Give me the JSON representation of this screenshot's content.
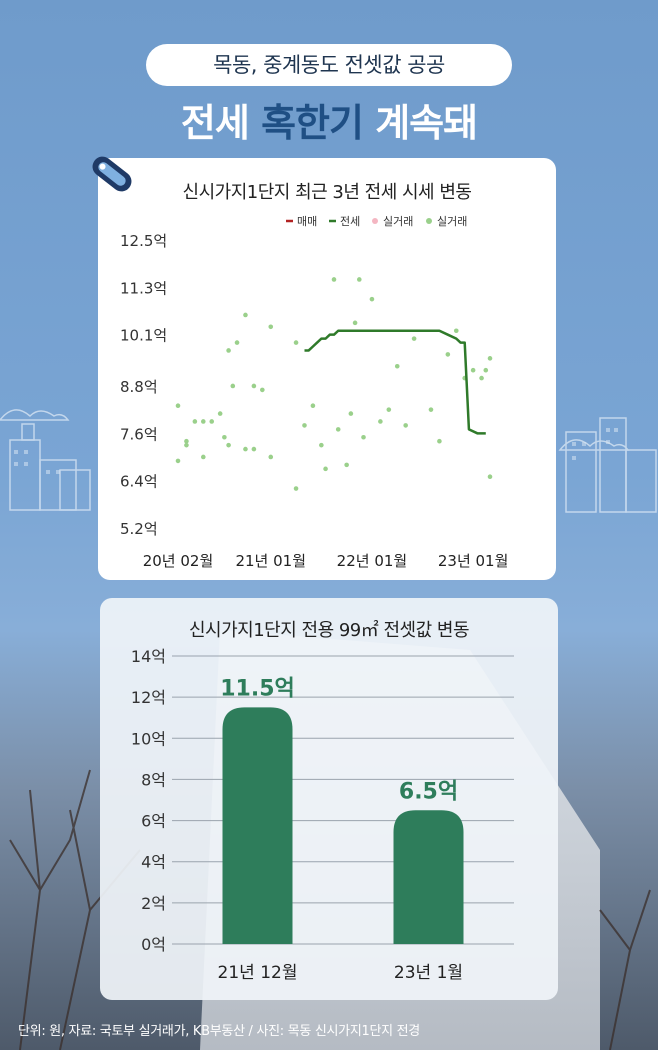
{
  "header": {
    "subtitle": "목동, 중계동도 전셋값 공공",
    "headline_part1": "전세",
    "headline_highlight": "혹한기",
    "headline_part2": "계속돼"
  },
  "footer": {
    "text": "단위: 원, 자료: 국토부 실거래가, KB부동산 / 사진: 목동 신시가지1단지 전경"
  },
  "colors": {
    "accent_blue": "#1f4f84",
    "bar_green": "#2e7d5b",
    "line_green": "#2f7a2a",
    "sale_red": "#b22222",
    "dot_pink": "#f4b6c2",
    "dot_green": "#9ad08b"
  },
  "chart_data": [
    {
      "type": "line",
      "title": "신시가지1단지 최근 3년 전세 시세 변동",
      "legend": [
        {
          "label": "매매",
          "style": "line",
          "color": "#b22222"
        },
        {
          "label": "전세",
          "style": "line",
          "color": "#2f7a2a"
        },
        {
          "label": "실거래",
          "style": "dot",
          "color": "#f4b6c2"
        },
        {
          "label": "실거래",
          "style": "dot",
          "color": "#9ad08b"
        }
      ],
      "legend_position": "top-right",
      "y_ticks": [
        "12.5억",
        "11.3억",
        "10.1억",
        "8.8억",
        "7.6억",
        "6.4억",
        "5.2억"
      ],
      "y_tick_values": [
        12.5,
        11.3,
        10.1,
        8.8,
        7.6,
        6.4,
        5.2
      ],
      "ylim": [
        5.2,
        12.5
      ],
      "x_ticks": [
        "20년 02월",
        "21년 01월",
        "22년 01월",
        "23년 01월"
      ],
      "x_tick_positions": [
        0,
        11,
        23,
        35
      ],
      "xlim": [
        0,
        37
      ],
      "series": [
        {
          "name": "전세",
          "x": [
            15.0,
            15.5,
            16.0,
            16.5,
            17.0,
            17.5,
            18.0,
            18.5,
            19.0,
            20.0,
            22.0,
            24.0,
            26.0,
            28.0,
            30.0,
            31.0,
            32.0,
            33.0,
            33.5,
            34.0,
            34.5,
            35.5,
            36.5
          ],
          "values": [
            9.7,
            9.7,
            9.8,
            9.9,
            10.0,
            10.0,
            10.1,
            10.1,
            10.2,
            10.2,
            10.2,
            10.2,
            10.2,
            10.2,
            10.2,
            10.2,
            10.1,
            10.0,
            9.9,
            9.9,
            7.7,
            7.6,
            7.6
          ]
        }
      ],
      "scatter": {
        "name": "실거래",
        "x": [
          0.0,
          0.0,
          1.0,
          1.0,
          2.0,
          3.0,
          3.0,
          4.0,
          5.0,
          5.5,
          6.0,
          6.0,
          6.5,
          7.0,
          8.0,
          8.0,
          9.0,
          9.0,
          10.0,
          11.0,
          11.0,
          14.0,
          14.0,
          15.0,
          16.0,
          17.0,
          17.5,
          18.5,
          19.0,
          20.0,
          20.5,
          21.0,
          21.5,
          22.0,
          23.0,
          24.0,
          25.0,
          26.0,
          27.0,
          28.0,
          30.0,
          31.0,
          32.0,
          33.0,
          34.0,
          35.0,
          36.0,
          36.5,
          37.0,
          37.0
        ],
        "values": [
          8.3,
          6.9,
          7.4,
          7.3,
          7.9,
          7.9,
          7.0,
          7.9,
          8.1,
          7.5,
          7.3,
          9.7,
          8.8,
          9.9,
          7.2,
          10.6,
          8.8,
          7.2,
          8.7,
          10.3,
          7.0,
          9.9,
          6.2,
          7.8,
          8.3,
          7.3,
          6.7,
          11.5,
          7.7,
          6.8,
          8.1,
          10.4,
          11.5,
          7.5,
          11.0,
          7.9,
          8.2,
          9.3,
          7.8,
          10.0,
          8.2,
          7.4,
          9.6,
          10.2,
          9.0,
          9.2,
          9.0,
          9.2,
          6.5,
          9.5
        ]
      }
    },
    {
      "type": "bar",
      "title": "신시가지1단지 전용 99㎡ 전셋값 변동",
      "categories": [
        "21년 12월",
        "23년 1월"
      ],
      "values": [
        11.5,
        6.5
      ],
      "value_labels": [
        "11.5억",
        "6.5억"
      ],
      "y_ticks": [
        "14억",
        "12억",
        "10억",
        "8억",
        "6억",
        "4억",
        "2억",
        "0억"
      ],
      "y_tick_values": [
        14,
        12,
        10,
        8,
        6,
        4,
        2,
        0
      ],
      "ylim": [
        0,
        14
      ],
      "grid": true
    }
  ]
}
